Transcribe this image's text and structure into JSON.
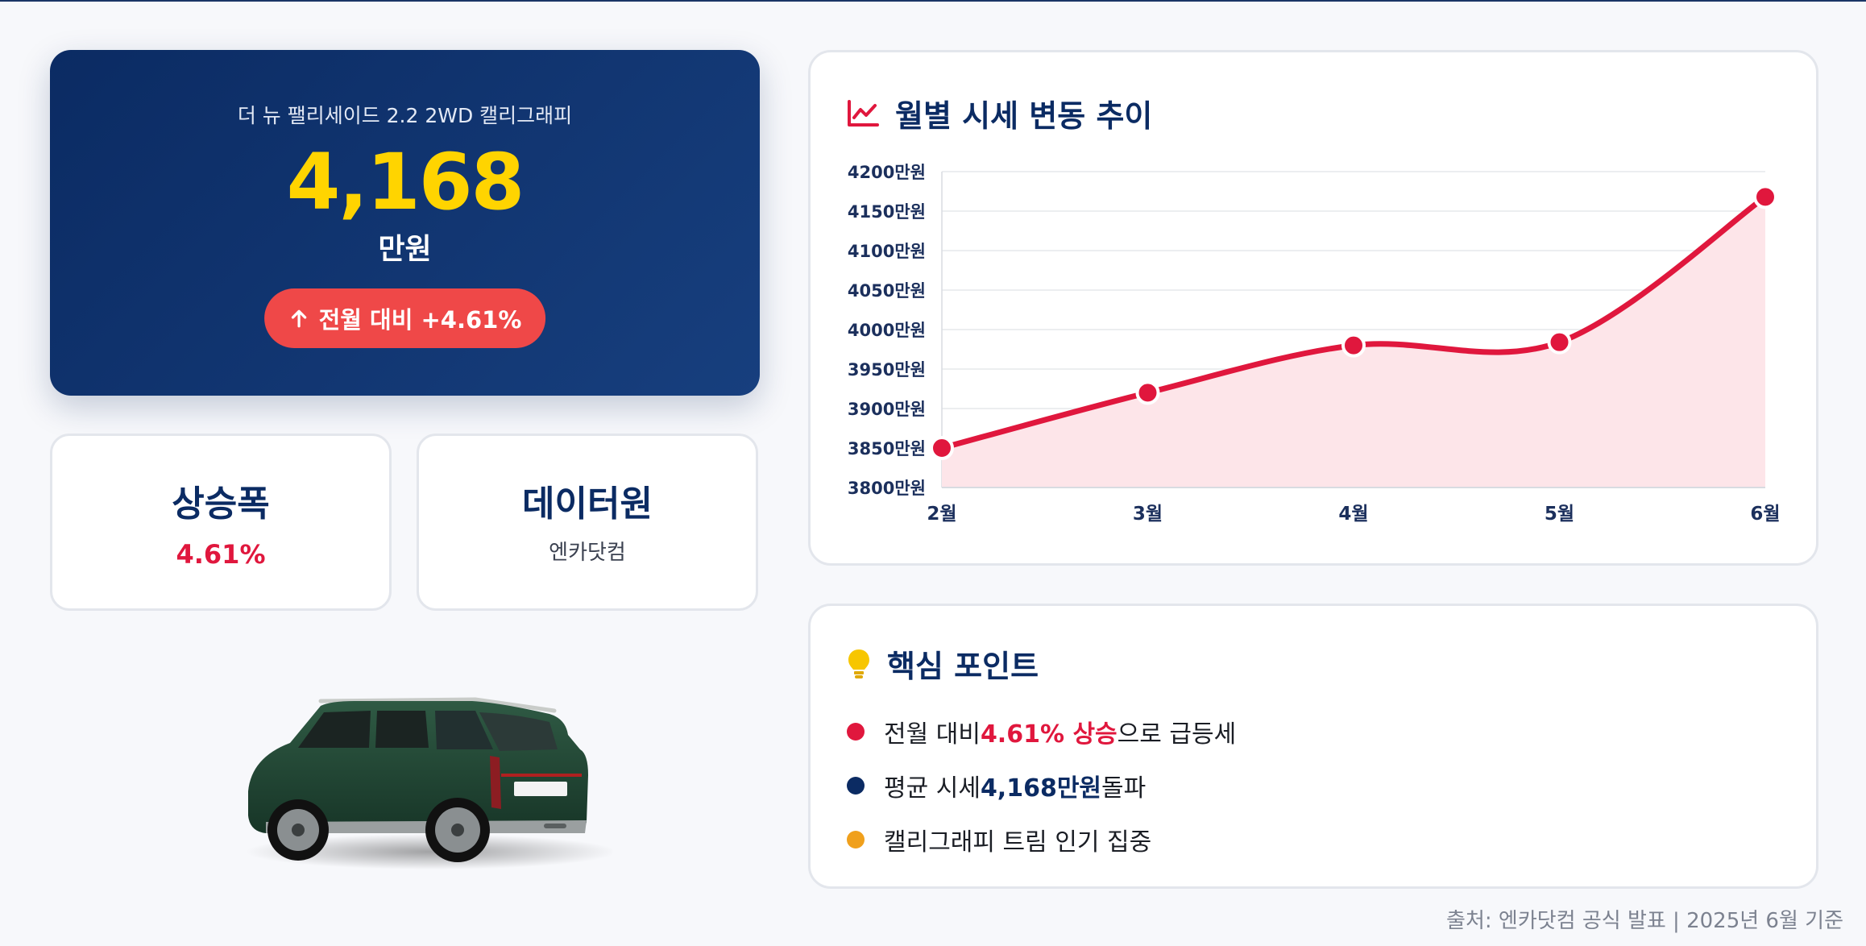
{
  "price_card": {
    "trim_name": "더 뉴 팰리세이드 2.2 2WD 캘리그래피",
    "price": "4,168",
    "unit": "만원",
    "change_label": "전월 대비 +4.61%"
  },
  "stats": [
    {
      "title": "상승폭",
      "value": "4.61%"
    },
    {
      "title": "데이터원",
      "value": "엔카닷컴"
    }
  ],
  "chart_card": {
    "title": "월별 시세 변동 추이"
  },
  "points_card": {
    "title": "핵심 포인트",
    "items": [
      {
        "pre": "전월 대비 ",
        "highlight": "4.61% 상승",
        "post": "으로 급등세",
        "dot_color": "#e0173d",
        "highlight_color": "#e0173d"
      },
      {
        "pre": "평균 시세 ",
        "highlight": "4,168만원",
        "post": " 돌파",
        "dot_color": "#0b2b63",
        "highlight_color": "#0b2b63"
      },
      {
        "pre": "캘리그래피 트림 인기 집중",
        "highlight": "",
        "post": "",
        "dot_color": "#f0a01c",
        "highlight_color": "#f0a01c"
      }
    ]
  },
  "footer": "출처: 엔카닷컴 공식 발표 | 2025년 6월 기준",
  "colors": {
    "accent_red": "#e0173d",
    "navy": "#0b2b63",
    "gold": "#ffd400",
    "badge_red": "#ef4848"
  },
  "chart_data": {
    "type": "line",
    "categories": [
      "2월",
      "3월",
      "4월",
      "5월",
      "6월"
    ],
    "values": [
      3850,
      3920,
      3980,
      3984,
      4168
    ],
    "y_unit_suffix": "만원",
    "ylim": [
      3800,
      4200
    ],
    "y_ticks": [
      3800,
      3850,
      3900,
      3950,
      4000,
      4050,
      4100,
      4150,
      4200
    ],
    "y_tick_labels": [
      "3800만원",
      "3850만원",
      "3900만원",
      "3950만원",
      "4000만원",
      "4050만원",
      "4100만원",
      "4150만원",
      "4200만원"
    ],
    "line_color": "#e0173d",
    "fill_color": "#fde5e9",
    "grid": true,
    "area_fill": true,
    "curve": "smooth"
  }
}
